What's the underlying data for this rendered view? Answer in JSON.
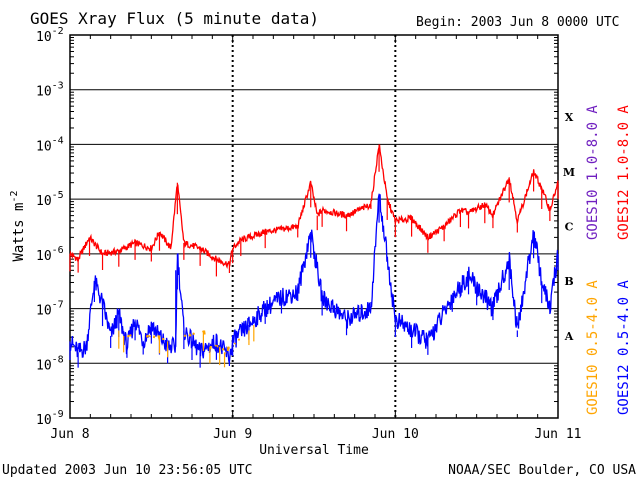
{
  "chart_data": {
    "type": "line",
    "title": "GOES Xray Flux (5 minute data)",
    "begin_label": "Begin:  2003 Jun 8 0000 UTC",
    "xlabel": "Universal Time",
    "ylabel": "Watts m",
    "ylabel_exponent": "-2",
    "updated": "Updated 2003 Jun 10 23:56:05 UTC",
    "credit": "NOAA/SEC Boulder, CO USA",
    "x_ticks": [
      "Jun 8",
      "Jun 9",
      "Jun 10",
      "Jun 11"
    ],
    "y_scale": "log",
    "ylim": [
      -9,
      -2
    ],
    "y_ticks": [
      {
        "base": "10",
        "exp": "-2"
      },
      {
        "base": "10",
        "exp": "-3"
      },
      {
        "base": "10",
        "exp": "-4"
      },
      {
        "base": "10",
        "exp": "-5"
      },
      {
        "base": "10",
        "exp": "-6"
      },
      {
        "base": "10",
        "exp": "-7"
      },
      {
        "base": "10",
        "exp": "-8"
      },
      {
        "base": "10",
        "exp": "-9"
      }
    ],
    "flare_classes": [
      {
        "label": "X",
        "level": -3.5
      },
      {
        "label": "M",
        "level": -4.5
      },
      {
        "label": "C",
        "level": -5.5
      },
      {
        "label": "B",
        "level": -6.5
      },
      {
        "label": "A",
        "level": -7.5
      }
    ],
    "xlim_days": [
      0,
      3
    ],
    "series": [
      {
        "name": "GOES12 1.0-8.0 A",
        "color": "#ff0000",
        "x": [
          0,
          0.05,
          0.12,
          0.2,
          0.3,
          0.4,
          0.5,
          0.55,
          0.62,
          0.66,
          0.7,
          0.8,
          0.9,
          0.98,
          1.0,
          1.05,
          1.2,
          1.4,
          1.48,
          1.52,
          1.55,
          1.7,
          1.85,
          1.9,
          1.95,
          2.0,
          2.1,
          2.2,
          2.3,
          2.4,
          2.45,
          2.55,
          2.6,
          2.7,
          2.75,
          2.85,
          2.9,
          2.95,
          3.0
        ],
        "y_log10": [
          -6.0,
          -6.1,
          -5.7,
          -6.0,
          -5.95,
          -5.8,
          -5.9,
          -5.6,
          -5.9,
          -4.7,
          -5.8,
          -5.9,
          -6.1,
          -6.2,
          -5.9,
          -5.75,
          -5.6,
          -5.5,
          -4.7,
          -5.3,
          -5.2,
          -5.3,
          -5.1,
          -4.0,
          -5.0,
          -5.4,
          -5.35,
          -5.7,
          -5.5,
          -5.2,
          -5.25,
          -5.1,
          -5.3,
          -4.6,
          -5.4,
          -4.5,
          -4.8,
          -5.2,
          -4.7
        ]
      },
      {
        "name": "GOES12 0.5-4.0 A",
        "color": "#0000ff",
        "x": [
          0,
          0.05,
          0.1,
          0.15,
          0.2,
          0.25,
          0.3,
          0.35,
          0.4,
          0.45,
          0.5,
          0.55,
          0.6,
          0.65,
          0.66,
          0.7,
          0.75,
          0.8,
          0.9,
          0.98,
          1.0,
          1.1,
          1.2,
          1.3,
          1.4,
          1.48,
          1.55,
          1.7,
          1.85,
          1.9,
          2.0,
          2.1,
          2.2,
          2.35,
          2.45,
          2.5,
          2.6,
          2.7,
          2.75,
          2.85,
          2.9,
          2.95,
          3.0
        ],
        "y_log10": [
          -7.6,
          -7.8,
          -7.7,
          -6.5,
          -6.9,
          -7.5,
          -7.1,
          -7.7,
          -7.2,
          -7.6,
          -7.3,
          -7.5,
          -7.7,
          -7.7,
          -6.0,
          -7.4,
          -7.6,
          -7.8,
          -7.6,
          -7.9,
          -7.6,
          -7.3,
          -7.0,
          -6.8,
          -6.7,
          -5.6,
          -6.8,
          -7.2,
          -7.0,
          -4.9,
          -7.2,
          -7.4,
          -7.6,
          -6.8,
          -6.4,
          -6.6,
          -7.0,
          -6.1,
          -7.4,
          -5.6,
          -6.5,
          -7.0,
          -6.0
        ]
      },
      {
        "name": "GOES10 1.0-8.0 A",
        "color": "#7020c0",
        "x": [],
        "y_log10": []
      },
      {
        "name": "GOES10 0.5-4.0 A",
        "color": "#ffa500",
        "x": [
          0.3,
          0.33,
          0.55,
          0.6,
          0.82,
          0.86,
          0.92,
          0.95,
          1.1,
          1.13
        ],
        "y_log10": [
          -7.4,
          -7.5,
          -7.5,
          -7.6,
          -7.4,
          -7.7,
          -7.7,
          -7.8,
          -7.4,
          -7.3
        ]
      }
    ]
  }
}
